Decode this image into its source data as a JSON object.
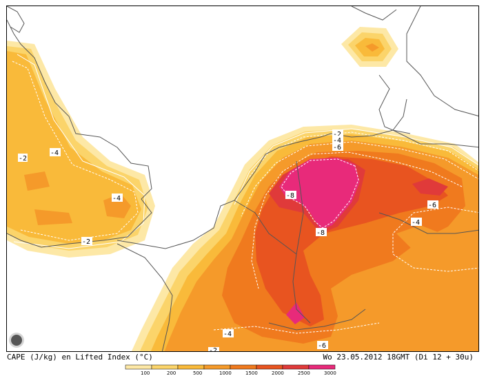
{
  "title": "CAPE (J/kg) en Lifted Index (°C)",
  "valid_time": "Wo 23.05.2012 18GMT (Di 12 + 30u)",
  "colors": {
    "c100": "#fde8a6",
    "c200": "#fbd46a",
    "c500": "#f9ba3a",
    "c1000": "#f59a2a",
    "c1500": "#f07a1e",
    "c2000": "#e85420",
    "c2500": "#e03a3a",
    "c3000": "#e82a7a",
    "coast": "#555555"
  },
  "legend": {
    "ticks": [
      "100",
      "200",
      "500",
      "1000",
      "1500",
      "2000",
      "2500",
      "3000"
    ]
  },
  "lifted_index_labels": {
    "uk_west": "-2",
    "uk_center": "-4",
    "uk_east": "-4",
    "uk_south": "-2",
    "north_top": "-2",
    "north_mid": "-4",
    "north_low": "-6",
    "core_west": "-8",
    "core_south": "-8",
    "east_upper": "-6",
    "east_lower": "-4",
    "south_west": "-4",
    "south_corner": "-2",
    "south_east": "-6"
  }
}
